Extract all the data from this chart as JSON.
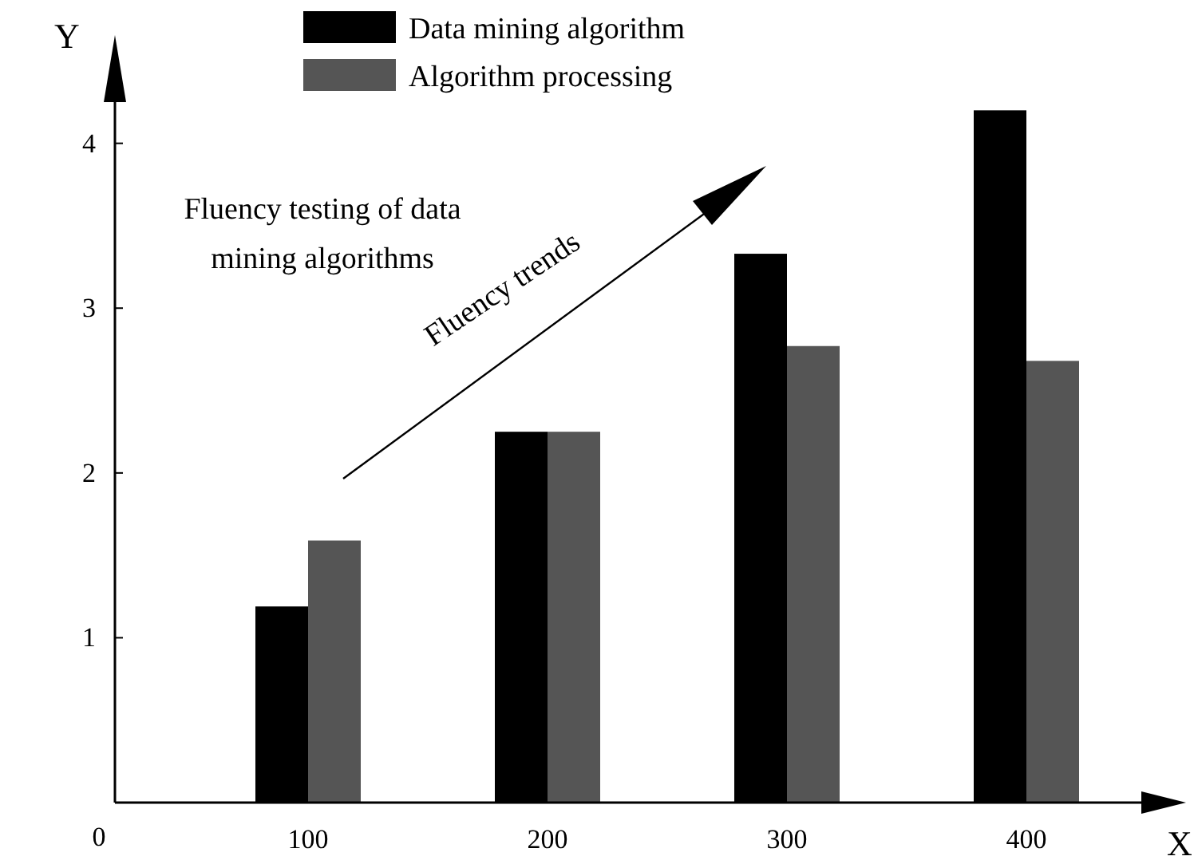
{
  "chart_data": {
    "type": "bar",
    "categories": [
      "100",
      "200",
      "300",
      "400"
    ],
    "series": [
      {
        "name": "Data mining algorithm",
        "color": "#000000",
        "values": [
          1.19,
          2.25,
          3.33,
          4.2
        ]
      },
      {
        "name": "Algorithm processing",
        "color": "#555555",
        "values": [
          1.59,
          2.25,
          2.77,
          2.68
        ]
      }
    ],
    "xlabel": "X",
    "ylabel": "Y",
    "ylim": [
      0,
      4.25
    ],
    "yticks": [
      1,
      2,
      3,
      4
    ],
    "annotations": [
      "Fluency testing of data mining algorithms",
      "Fluency trends",
      "0"
    ],
    "legend": "top",
    "grid": false
  }
}
